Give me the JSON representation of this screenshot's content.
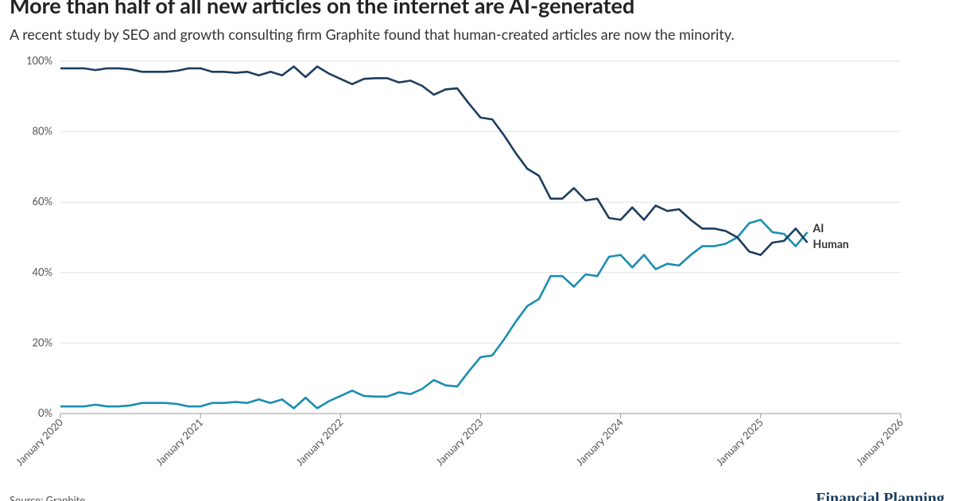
{
  "chart_data": {
    "type": "line",
    "title": "More than half of all new articles on the internet are AI-generated",
    "subtitle": "A recent study by SEO and growth consulting firm Graphite found that human-created articles are now the minority.",
    "source": "Source: Graphite",
    "logo": "Financial Planning",
    "x": [
      "2020-01",
      "2020-02",
      "2020-03",
      "2020-04",
      "2020-05",
      "2020-06",
      "2020-07",
      "2020-08",
      "2020-09",
      "2020-10",
      "2020-11",
      "2020-12",
      "2021-01",
      "2021-02",
      "2021-03",
      "2021-04",
      "2021-05",
      "2021-06",
      "2021-07",
      "2021-08",
      "2021-09",
      "2021-10",
      "2021-11",
      "2021-12",
      "2022-01",
      "2022-02",
      "2022-03",
      "2022-04",
      "2022-05",
      "2022-06",
      "2022-07",
      "2022-08",
      "2022-09",
      "2022-10",
      "2022-11",
      "2022-12",
      "2023-01",
      "2023-02",
      "2023-03",
      "2023-04",
      "2023-05",
      "2023-06",
      "2023-07",
      "2023-08",
      "2023-09",
      "2023-10",
      "2023-11",
      "2023-12",
      "2024-01",
      "2024-02",
      "2024-03",
      "2024-04",
      "2024-05",
      "2024-06",
      "2024-07",
      "2024-08",
      "2024-09",
      "2024-10",
      "2024-11",
      "2024-12",
      "2025-01",
      "2025-02",
      "2025-03",
      "2025-04",
      "2025-05"
    ],
    "series": [
      {
        "name": "AI",
        "color": "#1b8db0",
        "values": [
          2,
          2,
          2,
          2.5,
          2,
          2,
          2.3,
          3,
          3,
          3,
          2.7,
          2,
          2,
          3,
          3,
          3.3,
          3,
          4,
          3,
          4,
          1.5,
          4.5,
          1.5,
          3.5,
          5,
          6.5,
          5,
          4.8,
          4.8,
          6,
          5.5,
          7,
          9.5,
          8,
          7.7,
          12,
          16,
          16.5,
          21,
          26,
          30.5,
          32.5,
          39,
          39,
          36,
          39.5,
          39,
          44.5,
          45,
          41.5,
          45,
          41,
          42.5,
          42,
          45,
          47.5,
          47.5,
          48.2,
          50,
          54,
          55,
          51.5,
          51,
          47.5,
          51.5
        ]
      },
      {
        "name": "Human",
        "color": "#1c3d5e",
        "values": [
          98,
          98,
          98,
          97.5,
          98,
          98,
          97.7,
          97,
          97,
          97,
          97.3,
          98,
          98,
          97,
          97,
          96.7,
          97,
          96,
          97,
          96,
          98.5,
          95.5,
          98.5,
          96.5,
          95,
          93.5,
          95,
          95.2,
          95.2,
          94,
          94.5,
          93,
          90.5,
          92,
          92.3,
          88,
          84,
          83.5,
          79,
          74,
          69.5,
          67.5,
          61,
          61,
          64,
          60.5,
          61,
          55.5,
          55,
          58.5,
          55,
          59,
          57.5,
          58,
          55,
          52.5,
          52.5,
          51.8,
          50,
          46,
          45,
          48.5,
          49,
          52.5,
          48.5
        ]
      }
    ],
    "xlim": [
      "2020-01",
      "2026-01"
    ],
    "xticks": [
      {
        "value": "2020-01",
        "label": "January 2020"
      },
      {
        "value": "2021-01",
        "label": "January 2021"
      },
      {
        "value": "2022-01",
        "label": "January 2022"
      },
      {
        "value": "2023-01",
        "label": "January 2023"
      },
      {
        "value": "2024-01",
        "label": "January 2024"
      },
      {
        "value": "2025-01",
        "label": "January 2025"
      },
      {
        "value": "2026-01",
        "label": "January 2026"
      }
    ],
    "ylim": [
      0,
      100
    ],
    "yticks": [
      {
        "value": 0,
        "label": "0%"
      },
      {
        "value": 20,
        "label": "20%"
      },
      {
        "value": 40,
        "label": "40%"
      },
      {
        "value": 60,
        "label": "60%"
      },
      {
        "value": 80,
        "label": "80%"
      },
      {
        "value": 100,
        "label": "100%"
      }
    ],
    "grid": true
  }
}
